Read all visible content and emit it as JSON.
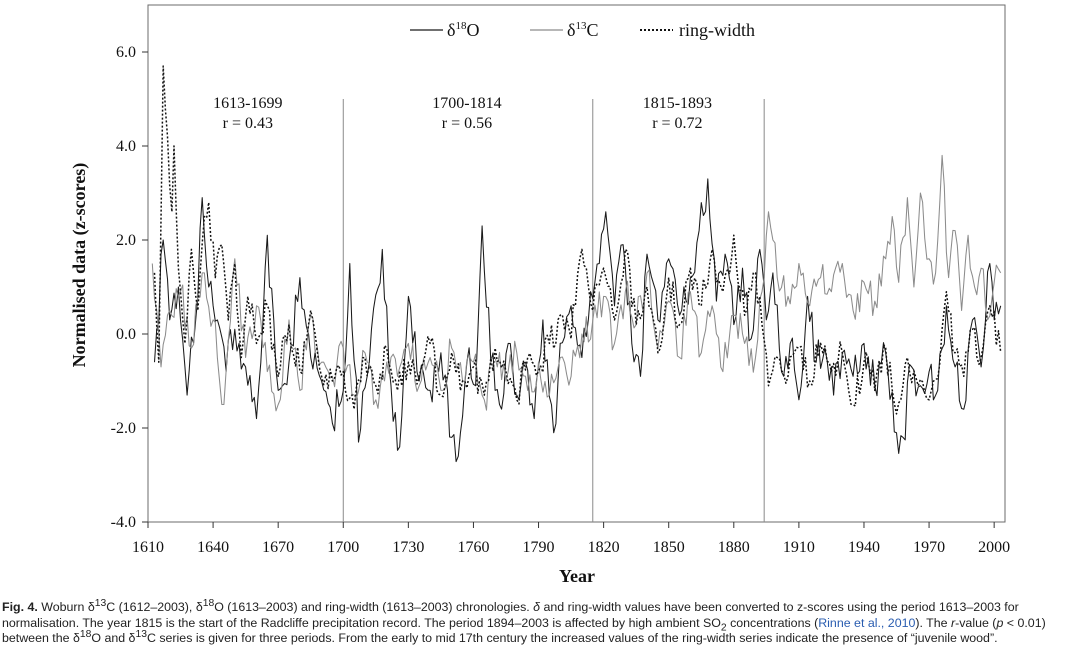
{
  "chart_data": {
    "type": "line",
    "title": "",
    "xlabel": "Year",
    "ylabel": "Normalised data (z-scores)",
    "xlim": [
      1610,
      2005
    ],
    "ylim": [
      -4.0,
      7.0
    ],
    "x_ticks": [
      "1610",
      "1640",
      "1670",
      "1700",
      "1730",
      "1760",
      "1790",
      "1820",
      "1850",
      "1880",
      "1910",
      "1940",
      "1970",
      "2000"
    ],
    "y_ticks": [
      "6.0",
      "4.0",
      "2.0",
      "0.0",
      "-2.0",
      "-4.0"
    ],
    "grid": false,
    "legend_position": "top",
    "series": [
      {
        "name": "δ18O",
        "legend": {
          "main": "δ",
          "sup": "18",
          "tail": "O"
        },
        "color": "#1a1a1a",
        "style": "solid",
        "x_start": 1613,
        "x_end": 2003,
        "anchors": [
          [
            1613,
            -0.6
          ],
          [
            1617,
            2.0
          ],
          [
            1620,
            0.3
          ],
          [
            1624,
            1.0
          ],
          [
            1628,
            -1.3
          ],
          [
            1632,
            0.3
          ],
          [
            1635,
            2.9
          ],
          [
            1638,
            1.0
          ],
          [
            1642,
            0.3
          ],
          [
            1646,
            -0.8
          ],
          [
            1650,
            0.1
          ],
          [
            1655,
            -0.7
          ],
          [
            1660,
            -1.8
          ],
          [
            1665,
            2.1
          ],
          [
            1670,
            -1.2
          ],
          [
            1675,
            -0.6
          ],
          [
            1680,
            1.2
          ],
          [
            1685,
            -0.5
          ],
          [
            1690,
            -1.0
          ],
          [
            1695,
            -1.9
          ],
          [
            1700,
            -1.2
          ],
          [
            1703,
            1.5
          ],
          [
            1707,
            -2.3
          ],
          [
            1712,
            -0.6
          ],
          [
            1718,
            1.8
          ],
          [
            1722,
            -1.1
          ],
          [
            1726,
            -2.4
          ],
          [
            1730,
            0.8
          ],
          [
            1735,
            -1.0
          ],
          [
            1740,
            -1.2
          ],
          [
            1745,
            -0.4
          ],
          [
            1750,
            -2.2
          ],
          [
            1753,
            -2.6
          ],
          [
            1757,
            -0.6
          ],
          [
            1761,
            -1.1
          ],
          [
            1764,
            2.3
          ],
          [
            1768,
            -0.6
          ],
          [
            1772,
            -1.5
          ],
          [
            1776,
            -0.2
          ],
          [
            1780,
            -1.3
          ],
          [
            1784,
            -0.6
          ],
          [
            1788,
            -1.8
          ],
          [
            1792,
            0.3
          ],
          [
            1797,
            -2.1
          ],
          [
            1800,
            -0.2
          ],
          [
            1805,
            0.6
          ],
          [
            1810,
            -0.5
          ],
          [
            1814,
            0.9
          ],
          [
            1818,
            1.5
          ],
          [
            1821,
            2.6
          ],
          [
            1825,
            0.6
          ],
          [
            1829,
            1.9
          ],
          [
            1833,
            -0.2
          ],
          [
            1837,
            -0.9
          ],
          [
            1840,
            1.7
          ],
          [
            1845,
            0.3
          ],
          [
            1850,
            1.6
          ],
          [
            1855,
            0.4
          ],
          [
            1860,
            1.2
          ],
          [
            1864,
            2.2
          ],
          [
            1868,
            3.3
          ],
          [
            1872,
            0.7
          ],
          [
            1876,
            1.7
          ],
          [
            1880,
            0.2
          ],
          [
            1884,
            1.4
          ],
          [
            1888,
            -0.1
          ],
          [
            1892,
            1.8
          ],
          [
            1895,
            0.3
          ],
          [
            1898,
            1.3
          ],
          [
            1902,
            -0.8
          ],
          [
            1906,
            -0.2
          ],
          [
            1910,
            -1.4
          ],
          [
            1914,
            0.8
          ],
          [
            1918,
            -0.6
          ],
          [
            1922,
            -0.3
          ],
          [
            1926,
            -1.3
          ],
          [
            1930,
            -0.4
          ],
          [
            1935,
            -0.9
          ],
          [
            1940,
            -0.2
          ],
          [
            1945,
            -1.1
          ],
          [
            1950,
            -0.4
          ],
          [
            1955,
            -2.1
          ],
          [
            1958,
            -2.2
          ],
          [
            1962,
            -0.7
          ],
          [
            1966,
            -1.1
          ],
          [
            1970,
            -0.8
          ],
          [
            1974,
            -1.2
          ],
          [
            1978,
            0.6
          ],
          [
            1982,
            -0.7
          ],
          [
            1986,
            -1.6
          ],
          [
            1990,
            0.3
          ],
          [
            1994,
            -0.7
          ],
          [
            1998,
            1.5
          ],
          [
            2000,
            0.3
          ],
          [
            2003,
            0.6
          ]
        ]
      },
      {
        "name": "δ13C",
        "legend": {
          "main": "δ",
          "sup": "13",
          "tail": "C"
        },
        "color": "#8c8c8c",
        "style": "solid",
        "x_start": 1612,
        "x_end": 2003,
        "anchors": [
          [
            1612,
            1.5
          ],
          [
            1616,
            -0.7
          ],
          [
            1620,
            0.5
          ],
          [
            1625,
            0.9
          ],
          [
            1630,
            -0.3
          ],
          [
            1635,
            1.3
          ],
          [
            1640,
            0.3
          ],
          [
            1645,
            -1.5
          ],
          [
            1650,
            1.6
          ],
          [
            1655,
            -0.5
          ],
          [
            1660,
            0.6
          ],
          [
            1665,
            -0.8
          ],
          [
            1670,
            -1.5
          ],
          [
            1675,
            0.3
          ],
          [
            1680,
            -1.2
          ],
          [
            1685,
            0.4
          ],
          [
            1690,
            -0.6
          ],
          [
            1695,
            -0.9
          ],
          [
            1700,
            -0.3
          ],
          [
            1705,
            -1.3
          ],
          [
            1710,
            -0.4
          ],
          [
            1715,
            -1.4
          ],
          [
            1720,
            -0.6
          ],
          [
            1725,
            -0.9
          ],
          [
            1730,
            -0.2
          ],
          [
            1735,
            -1.1
          ],
          [
            1740,
            -0.5
          ],
          [
            1745,
            -1.2
          ],
          [
            1750,
            -0.3
          ],
          [
            1755,
            -1.0
          ],
          [
            1760,
            -0.6
          ],
          [
            1765,
            -1.4
          ],
          [
            1770,
            -0.5
          ],
          [
            1775,
            -1.0
          ],
          [
            1780,
            -0.4
          ],
          [
            1785,
            -1.2
          ],
          [
            1790,
            -0.6
          ],
          [
            1795,
            -1.3
          ],
          [
            1800,
            -0.5
          ],
          [
            1805,
            -0.9
          ],
          [
            1810,
            0.0
          ],
          [
            1815,
            0.3
          ],
          [
            1820,
            0.8
          ],
          [
            1825,
            -0.2
          ],
          [
            1830,
            0.9
          ],
          [
            1835,
            0.2
          ],
          [
            1840,
            1.3
          ],
          [
            1845,
            -0.3
          ],
          [
            1850,
            0.7
          ],
          [
            1855,
            -0.5
          ],
          [
            1860,
            0.9
          ],
          [
            1865,
            -0.4
          ],
          [
            1870,
            0.6
          ],
          [
            1875,
            -0.8
          ],
          [
            1880,
            0.4
          ],
          [
            1885,
            -0.2
          ],
          [
            1890,
            -0.5
          ],
          [
            1893,
            0.9
          ],
          [
            1896,
            2.6
          ],
          [
            1900,
            1.2
          ],
          [
            1905,
            0.8
          ],
          [
            1910,
            1.5
          ],
          [
            1915,
            0.6
          ],
          [
            1920,
            1.2
          ],
          [
            1925,
            0.9
          ],
          [
            1930,
            1.5
          ],
          [
            1935,
            0.5
          ],
          [
            1940,
            1.1
          ],
          [
            1945,
            0.7
          ],
          [
            1950,
            1.6
          ],
          [
            1953,
            2.5
          ],
          [
            1956,
            1.1
          ],
          [
            1960,
            2.9
          ],
          [
            1963,
            1.0
          ],
          [
            1966,
            3.0
          ],
          [
            1970,
            1.6
          ],
          [
            1973,
            1.3
          ],
          [
            1976,
            3.8
          ],
          [
            1979,
            1.2
          ],
          [
            1982,
            2.2
          ],
          [
            1985,
            0.5
          ],
          [
            1988,
            2.1
          ],
          [
            1991,
            1.0
          ],
          [
            1994,
            1.4
          ],
          [
            1997,
            0.3
          ],
          [
            2000,
            1.1
          ],
          [
            2003,
            1.3
          ]
        ]
      },
      {
        "name": "ring-width",
        "legend": {
          "main": "ring-width",
          "sup": "",
          "tail": ""
        },
        "color": "#111111",
        "style": "dotted",
        "x_start": 1613,
        "x_end": 2003,
        "anchors": [
          [
            1613,
            1.3
          ],
          [
            1615,
            -0.6
          ],
          [
            1617,
            5.7
          ],
          [
            1619,
            4.2
          ],
          [
            1621,
            2.6
          ],
          [
            1622,
            4.0
          ],
          [
            1624,
            1.4
          ],
          [
            1627,
            -0.2
          ],
          [
            1630,
            1.8
          ],
          [
            1633,
            0.5
          ],
          [
            1636,
            2.5
          ],
          [
            1638,
            2.8
          ],
          [
            1641,
            1.2
          ],
          [
            1644,
            1.9
          ],
          [
            1647,
            0.3
          ],
          [
            1650,
            1.5
          ],
          [
            1653,
            -0.5
          ],
          [
            1656,
            0.8
          ],
          [
            1660,
            -0.2
          ],
          [
            1665,
            0.6
          ],
          [
            1670,
            -0.9
          ],
          [
            1675,
            0.2
          ],
          [
            1680,
            -0.8
          ],
          [
            1685,
            0.5
          ],
          [
            1690,
            -0.9
          ],
          [
            1695,
            -1.0
          ],
          [
            1700,
            -0.8
          ],
          [
            1705,
            -1.6
          ],
          [
            1710,
            -0.5
          ],
          [
            1715,
            -1.1
          ],
          [
            1720,
            -0.3
          ],
          [
            1725,
            -1.2
          ],
          [
            1730,
            -0.6
          ],
          [
            1735,
            -0.9
          ],
          [
            1740,
            -0.2
          ],
          [
            1745,
            -1.3
          ],
          [
            1750,
            -0.4
          ],
          [
            1755,
            -1.0
          ],
          [
            1760,
            -0.7
          ],
          [
            1765,
            -1.3
          ],
          [
            1770,
            -0.3
          ],
          [
            1775,
            -0.8
          ],
          [
            1780,
            -1.4
          ],
          [
            1785,
            -0.5
          ],
          [
            1790,
            -0.8
          ],
          [
            1795,
            -0.2
          ],
          [
            1800,
            0.4
          ],
          [
            1805,
            -0.1
          ],
          [
            1810,
            1.8
          ],
          [
            1815,
            0.5
          ],
          [
            1820,
            1.4
          ],
          [
            1825,
            0.3
          ],
          [
            1830,
            1.8
          ],
          [
            1835,
            0.2
          ],
          [
            1840,
            1.0
          ],
          [
            1845,
            -0.4
          ],
          [
            1850,
            1.2
          ],
          [
            1855,
            0.2
          ],
          [
            1860,
            1.4
          ],
          [
            1865,
            0.6
          ],
          [
            1870,
            1.8
          ],
          [
            1875,
            0.9
          ],
          [
            1880,
            2.1
          ],
          [
            1885,
            0.4
          ],
          [
            1890,
            1.3
          ],
          [
            1893,
            0.2
          ],
          [
            1896,
            -1.1
          ],
          [
            1900,
            -0.5
          ],
          [
            1905,
            -0.9
          ],
          [
            1910,
            -0.3
          ],
          [
            1915,
            -1.0
          ],
          [
            1920,
            -0.2
          ],
          [
            1925,
            -0.8
          ],
          [
            1930,
            -0.4
          ],
          [
            1935,
            -1.5
          ],
          [
            1940,
            -0.6
          ],
          [
            1945,
            -1.2
          ],
          [
            1950,
            -0.3
          ],
          [
            1955,
            -1.7
          ],
          [
            1960,
            -0.5
          ],
          [
            1965,
            -1.1
          ],
          [
            1970,
            -1.4
          ],
          [
            1975,
            -0.6
          ],
          [
            1978,
            0.9
          ],
          [
            1982,
            -0.4
          ],
          [
            1986,
            -0.9
          ],
          [
            1990,
            0.1
          ],
          [
            1994,
            -0.5
          ],
          [
            1998,
            0.6
          ],
          [
            2003,
            -0.4
          ]
        ]
      }
    ],
    "period_dividers": [
      1700,
      1815,
      1894
    ],
    "annotations": [
      {
        "period": "1613-1699",
        "r": "r = 0.43",
        "x": 1656
      },
      {
        "period": "1700-1814",
        "r": "r = 0.56",
        "x": 1757
      },
      {
        "period": "1815-1893",
        "r": "r = 0.72",
        "x": 1854
      }
    ]
  },
  "caption": {
    "label": "Fig. 4.",
    "segments": [
      {
        "t": " Woburn δ"
      },
      {
        "t": "13",
        "sup": true
      },
      {
        "t": "C (1612–2003), δ"
      },
      {
        "t": "18",
        "sup": true
      },
      {
        "t": "O (1613–2003) and ring-width (1613–2003) chronologies. "
      },
      {
        "t": "δ",
        "it": true
      },
      {
        "t": " and ring-width values have been converted to z-scores using the period 1613–2003 for normalisation. The year 1815 is the start of the Radcliffe precipitation record. The period 1894–2003 is affected by high ambient SO"
      },
      {
        "t": "2",
        "sub": true
      },
      {
        "t": " concentrations ("
      },
      {
        "t": "Rinne et al., 2010",
        "ref": true
      },
      {
        "t": "). The "
      },
      {
        "t": "r",
        "it": true
      },
      {
        "t": "-value ("
      },
      {
        "t": "p",
        "it": true
      },
      {
        "t": " < 0.01) between the δ"
      },
      {
        "t": "18",
        "sup": true
      },
      {
        "t": "O and δ"
      },
      {
        "t": "13",
        "sup": true
      },
      {
        "t": "C series is given for three periods. From the early to mid 17th century the increased values of the ring-width series indicate the presence of “juvenile wood”."
      }
    ]
  }
}
